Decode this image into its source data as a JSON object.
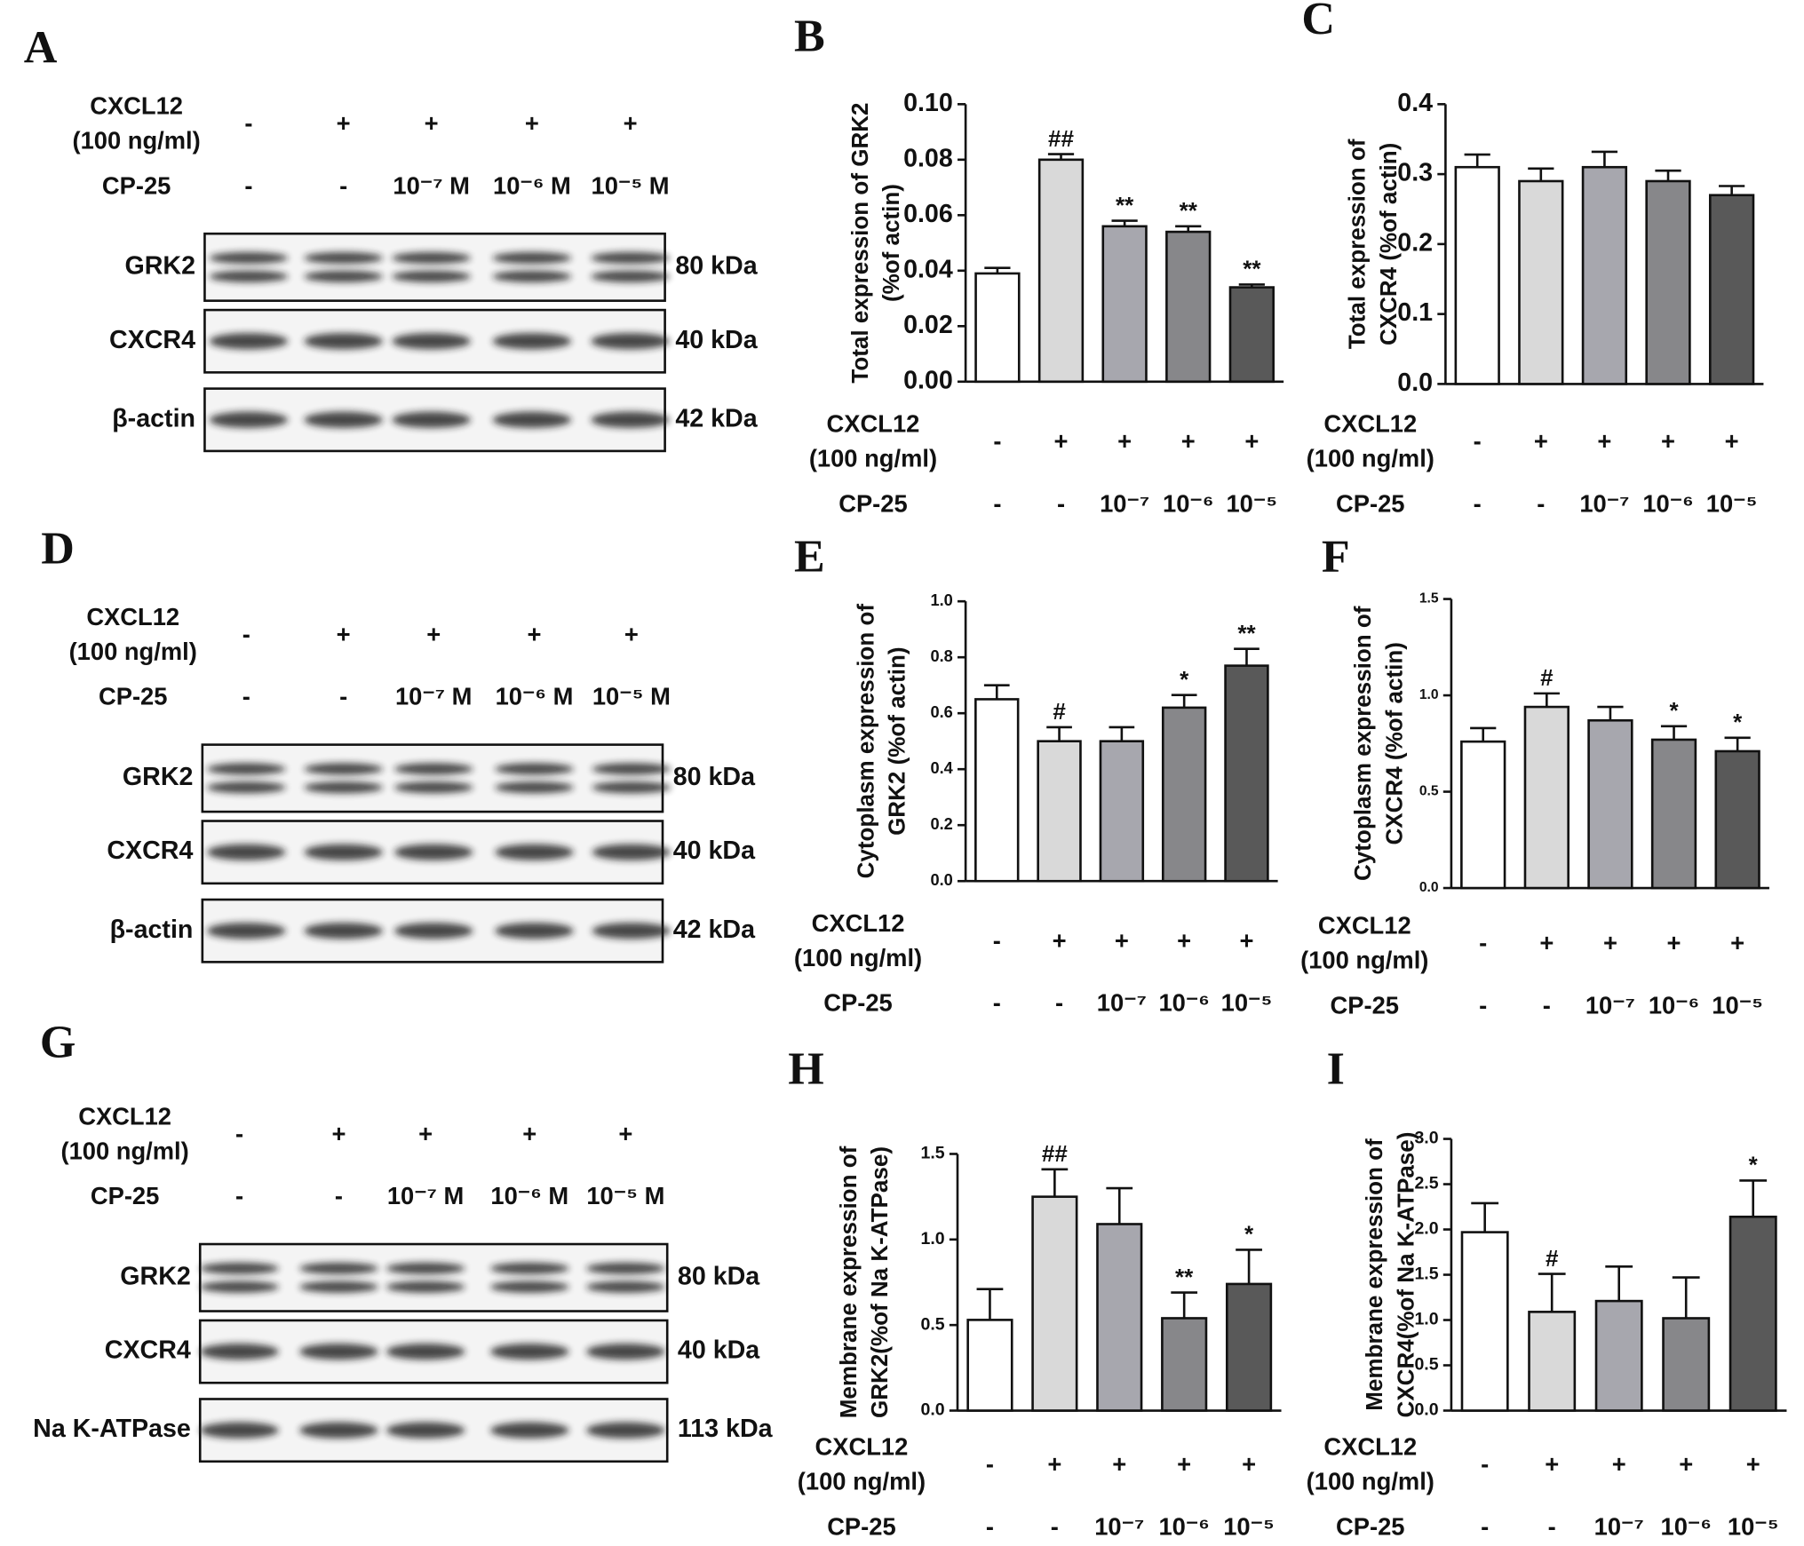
{
  "blots": [
    {
      "panel": "A",
      "conditions": [
        {
          "label": [
            "CXCL12",
            "(100 ng/ml)"
          ],
          "values": [
            "-",
            "+",
            "+",
            "+",
            "+"
          ]
        },
        {
          "label": [
            "CP-25"
          ],
          "values": [
            "-",
            "-",
            "10⁻⁷ M",
            "10⁻⁶ M",
            "10⁻⁵ M"
          ]
        }
      ],
      "bands": [
        {
          "label": "GRK2",
          "size": "80 kDa"
        },
        {
          "label": "CXCR4",
          "size": "40 kDa"
        },
        {
          "label": "β-actin",
          "size": "42 kDa"
        }
      ]
    },
    {
      "panel": "D",
      "conditions": [
        {
          "label": [
            "CXCL12",
            "(100 ng/ml)"
          ],
          "values": [
            "-",
            "+",
            "+",
            "+",
            "+"
          ]
        },
        {
          "label": [
            "CP-25"
          ],
          "values": [
            "-",
            "-",
            "10⁻⁷ M",
            "10⁻⁶ M",
            "10⁻⁵ M"
          ]
        }
      ],
      "bands": [
        {
          "label": "GRK2",
          "size": "80 kDa"
        },
        {
          "label": "CXCR4",
          "size": "40 kDa"
        },
        {
          "label": "β-actin",
          "size": "42 kDa"
        }
      ]
    },
    {
      "panel": "G",
      "conditions": [
        {
          "label": [
            "CXCL12",
            "(100 ng/ml)"
          ],
          "values": [
            "-",
            "+",
            "+",
            "+",
            "+"
          ]
        },
        {
          "label": [
            "CP-25"
          ],
          "values": [
            "-",
            "-",
            "10⁻⁷ M",
            "10⁻⁶ M",
            "10⁻⁵ M"
          ]
        }
      ],
      "bands": [
        {
          "label": "GRK2",
          "size": "80 kDa"
        },
        {
          "label": "CXCR4",
          "size": "40 kDa"
        },
        {
          "label": "Na K-ATPase",
          "size": "113 kDa"
        }
      ]
    }
  ],
  "chart_data": [
    {
      "type": "bar",
      "panel": "B",
      "y_label": [
        "Total expression of GRK2",
        "(%of actin)"
      ],
      "conditions": [
        {
          "label": [
            "CXCL12",
            "(100 ng/ml)"
          ],
          "values": [
            "-",
            "+",
            "+",
            "+",
            "+"
          ]
        },
        {
          "label": [
            "CP-25"
          ],
          "values": [
            "-",
            "-",
            "10⁻⁷",
            "10⁻⁶",
            "10⁻⁵"
          ]
        }
      ],
      "values": [
        0.039,
        0.08,
        0.056,
        0.054,
        0.034
      ],
      "errors": [
        0.002,
        0.002,
        0.002,
        0.002,
        0.001
      ],
      "annotations": [
        null,
        "##",
        "**",
        "**",
        "**"
      ],
      "colors": [
        "#ffffff",
        "#d9d9d9",
        "#a7a7ae",
        "#87878a",
        "#595959"
      ],
      "ylim": [
        0,
        0.1
      ],
      "yticks": [
        {
          "value": 0,
          "label": "0.00"
        },
        {
          "value": 0.02,
          "label": "0.02"
        },
        {
          "value": 0.04,
          "label": "0.04"
        },
        {
          "value": 0.06,
          "label": "0.06"
        },
        {
          "value": 0.08,
          "label": "0.08"
        },
        {
          "value": 0.1,
          "label": "0.10"
        }
      ]
    },
    {
      "type": "bar",
      "panel": "C",
      "y_label": [
        "Total expression of",
        "CXCR4 (%of actin)"
      ],
      "conditions": [
        {
          "label": [
            "CXCL12",
            "(100 ng/ml)"
          ],
          "values": [
            "-",
            "+",
            "+",
            "+",
            "+"
          ]
        },
        {
          "label": [
            "CP-25"
          ],
          "values": [
            "-",
            "-",
            "10⁻⁷",
            "10⁻⁶",
            "10⁻⁵"
          ]
        }
      ],
      "values": [
        0.31,
        0.29,
        0.31,
        0.29,
        0.27
      ],
      "errors": [
        0.018,
        0.018,
        0.022,
        0.015,
        0.013
      ],
      "annotations": [
        null,
        null,
        null,
        null,
        null
      ],
      "colors": [
        "#ffffff",
        "#d9d9d9",
        "#a7a7ae",
        "#87878a",
        "#595959"
      ],
      "ylim": [
        0,
        0.4
      ],
      "yticks": [
        {
          "value": 0,
          "label": "0.0"
        },
        0.1,
        0.2,
        0.3,
        0.4
      ]
    },
    {
      "type": "bar",
      "panel": "E",
      "y_label": [
        "Cytoplasm expression of",
        "GRK2 (%of actin)"
      ],
      "conditions": [
        {
          "label": [
            "CXCL12",
            "(100 ng/ml)"
          ],
          "values": [
            "-",
            "+",
            "+",
            "+",
            "+"
          ]
        },
        {
          "label": [
            "CP-25"
          ],
          "values": [
            "-",
            "-",
            "10⁻⁷",
            "10⁻⁶",
            "10⁻⁵"
          ]
        }
      ],
      "values": [
        0.65,
        0.5,
        0.5,
        0.62,
        0.77
      ],
      "errors": [
        0.05,
        0.05,
        0.05,
        0.045,
        0.06
      ],
      "annotations": [
        null,
        "#",
        null,
        "*",
        "**"
      ],
      "colors": [
        "#ffffff",
        "#d9d9d9",
        "#a7a7ae",
        "#87878a",
        "#595959"
      ],
      "ylim": [
        0,
        1.0
      ],
      "yticks": [
        {
          "value": 0,
          "label": "0.0"
        },
        0.2,
        0.4,
        0.6,
        0.8,
        {
          "value": 1,
          "label": "1.0"
        }
      ]
    },
    {
      "type": "bar",
      "panel": "F",
      "y_label": [
        "Cytoplasm expression of",
        "CXCR4 (%of actin)"
      ],
      "conditions": [
        {
          "label": [
            "CXCL12",
            "(100 ng/ml)"
          ],
          "values": [
            "-",
            "+",
            "+",
            "+",
            "+"
          ]
        },
        {
          "label": [
            "CP-25"
          ],
          "values": [
            "-",
            "-",
            "10⁻⁷",
            "10⁻⁶",
            "10⁻⁵"
          ]
        }
      ],
      "values": [
        0.76,
        0.94,
        0.87,
        0.77,
        0.71
      ],
      "errors": [
        0.07,
        0.07,
        0.07,
        0.07,
        0.07
      ],
      "annotations": [
        null,
        "#",
        null,
        "*",
        "*"
      ],
      "colors": [
        "#ffffff",
        "#d9d9d9",
        "#a7a7ae",
        "#87878a",
        "#595959"
      ],
      "ylim": [
        0,
        1.5
      ],
      "yticks": [
        {
          "value": 0,
          "label": "0.0"
        },
        0.5,
        {
          "value": 1,
          "label": "1.0"
        },
        1.5
      ]
    },
    {
      "type": "bar",
      "panel": "H",
      "y_label": [
        "Membrane expression of",
        "GRK2(%of Na K-ATPase)"
      ],
      "conditions": [
        {
          "label": [
            "CXCL12",
            "(100 ng/ml)"
          ],
          "values": [
            "-",
            "+",
            "+",
            "+",
            "+"
          ]
        },
        {
          "label": [
            "CP-25"
          ],
          "values": [
            "-",
            "-",
            "10⁻⁷",
            "10⁻⁶",
            "10⁻⁵"
          ]
        }
      ],
      "values": [
        0.53,
        1.25,
        1.09,
        0.54,
        0.74
      ],
      "errors": [
        0.18,
        0.16,
        0.21,
        0.15,
        0.2
      ],
      "annotations": [
        null,
        "##",
        null,
        "**",
        "*"
      ],
      "colors": [
        "#ffffff",
        "#d9d9d9",
        "#a7a7ae",
        "#87878a",
        "#595959"
      ],
      "ylim": [
        0,
        1.5
      ],
      "yticks": [
        {
          "value": 0,
          "label": "0.0"
        },
        0.5,
        {
          "value": 1,
          "label": "1.0"
        },
        1.5
      ]
    },
    {
      "type": "bar",
      "panel": "I",
      "y_label": [
        "Membrane expression of",
        "CXCR4(%of Na K-ATPase)"
      ],
      "conditions": [
        {
          "label": [
            "CXCL12",
            "(100 ng/ml)"
          ],
          "values": [
            "-",
            "+",
            "+",
            "+",
            "+"
          ]
        },
        {
          "label": [
            "CP-25"
          ],
          "values": [
            "-",
            "-",
            "10⁻⁷",
            "10⁻⁶",
            "10⁻⁵"
          ]
        }
      ],
      "values": [
        1.97,
        1.09,
        1.21,
        1.02,
        2.14
      ],
      "errors": [
        0.32,
        0.42,
        0.38,
        0.45,
        0.4
      ],
      "annotations": [
        null,
        "#",
        null,
        null,
        "*"
      ],
      "colors": [
        "#ffffff",
        "#d9d9d9",
        "#a7a7ae",
        "#87878a",
        "#595959"
      ],
      "ylim": [
        0,
        3.0
      ],
      "yticks": [
        {
          "value": 0,
          "label": "0.0"
        },
        0.5,
        {
          "value": 1,
          "label": "1.0"
        },
        1.5,
        {
          "value": 2,
          "label": "2.0"
        },
        2.5,
        {
          "value": 3,
          "label": "3.0"
        }
      ]
    }
  ]
}
